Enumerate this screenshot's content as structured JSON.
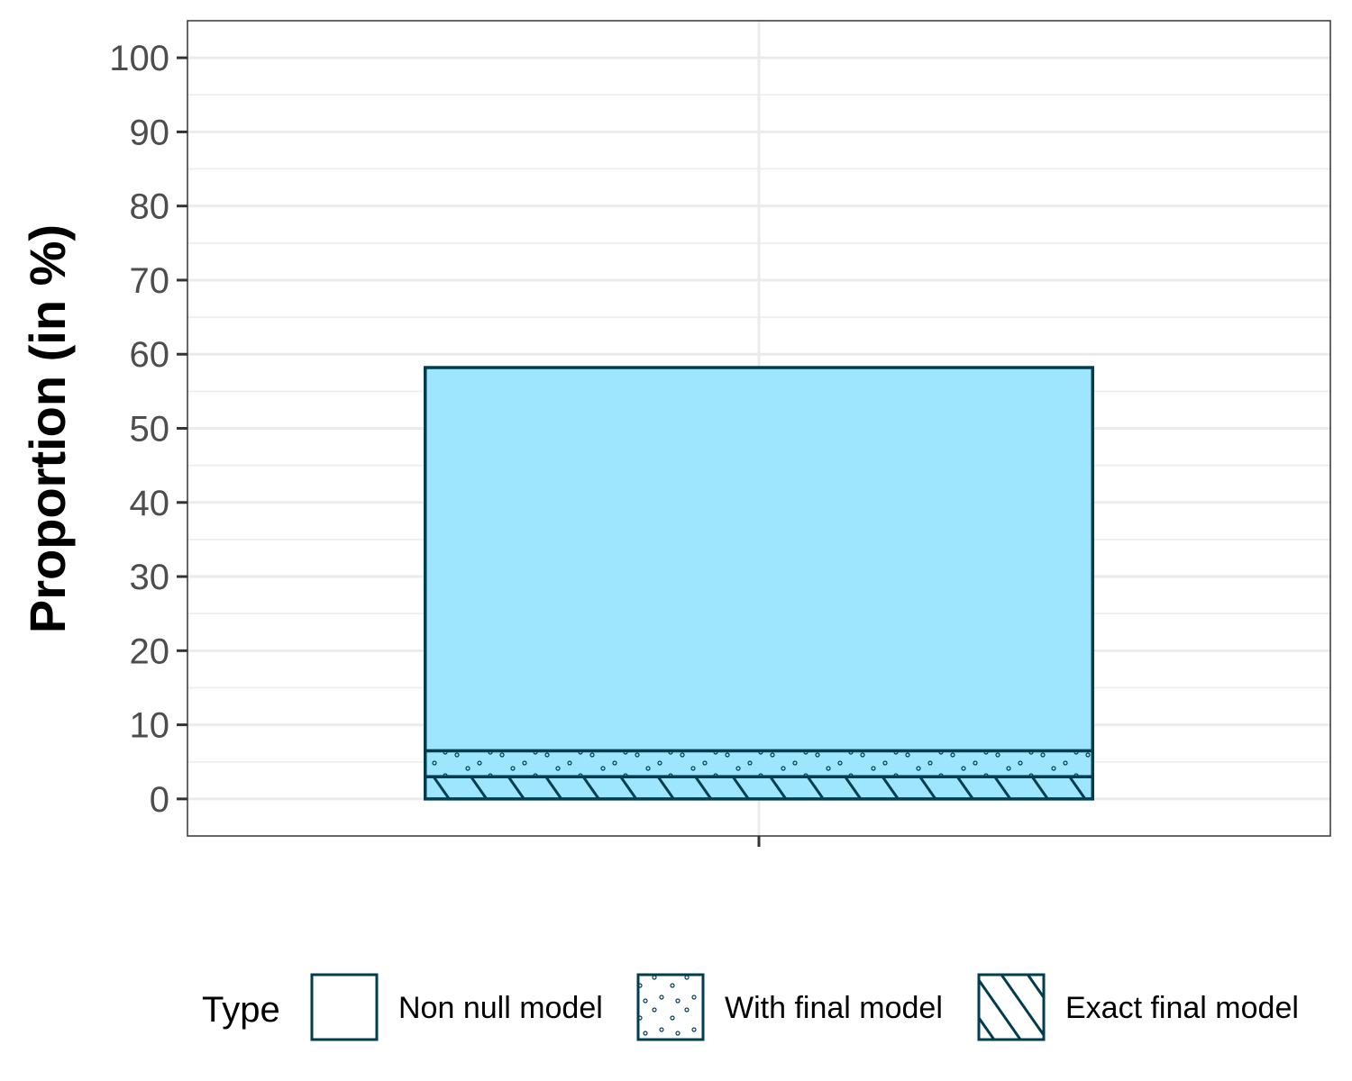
{
  "chart_data": {
    "type": "bar",
    "stacked": true,
    "categories": [
      ""
    ],
    "ylabel": "Proportion (in %)",
    "xlabel": "",
    "ylim": [
      -5,
      105
    ],
    "yticks": [
      "0",
      "10",
      "20",
      "30",
      "40",
      "50",
      "60",
      "70",
      "80",
      "90",
      "100"
    ],
    "grid": true,
    "legend_position": "bottom",
    "legend_title": "Type",
    "fill_color": "#9DE6FD",
    "stroke_color": "#003D4F",
    "series": [
      {
        "name": "Exact final model",
        "pattern": "stripes",
        "values": [
          3
        ]
      },
      {
        "name": "With final model",
        "pattern": "dots",
        "values": [
          3.5
        ]
      },
      {
        "name": "Non null model",
        "pattern": "none",
        "values": [
          51.7
        ]
      }
    ]
  }
}
